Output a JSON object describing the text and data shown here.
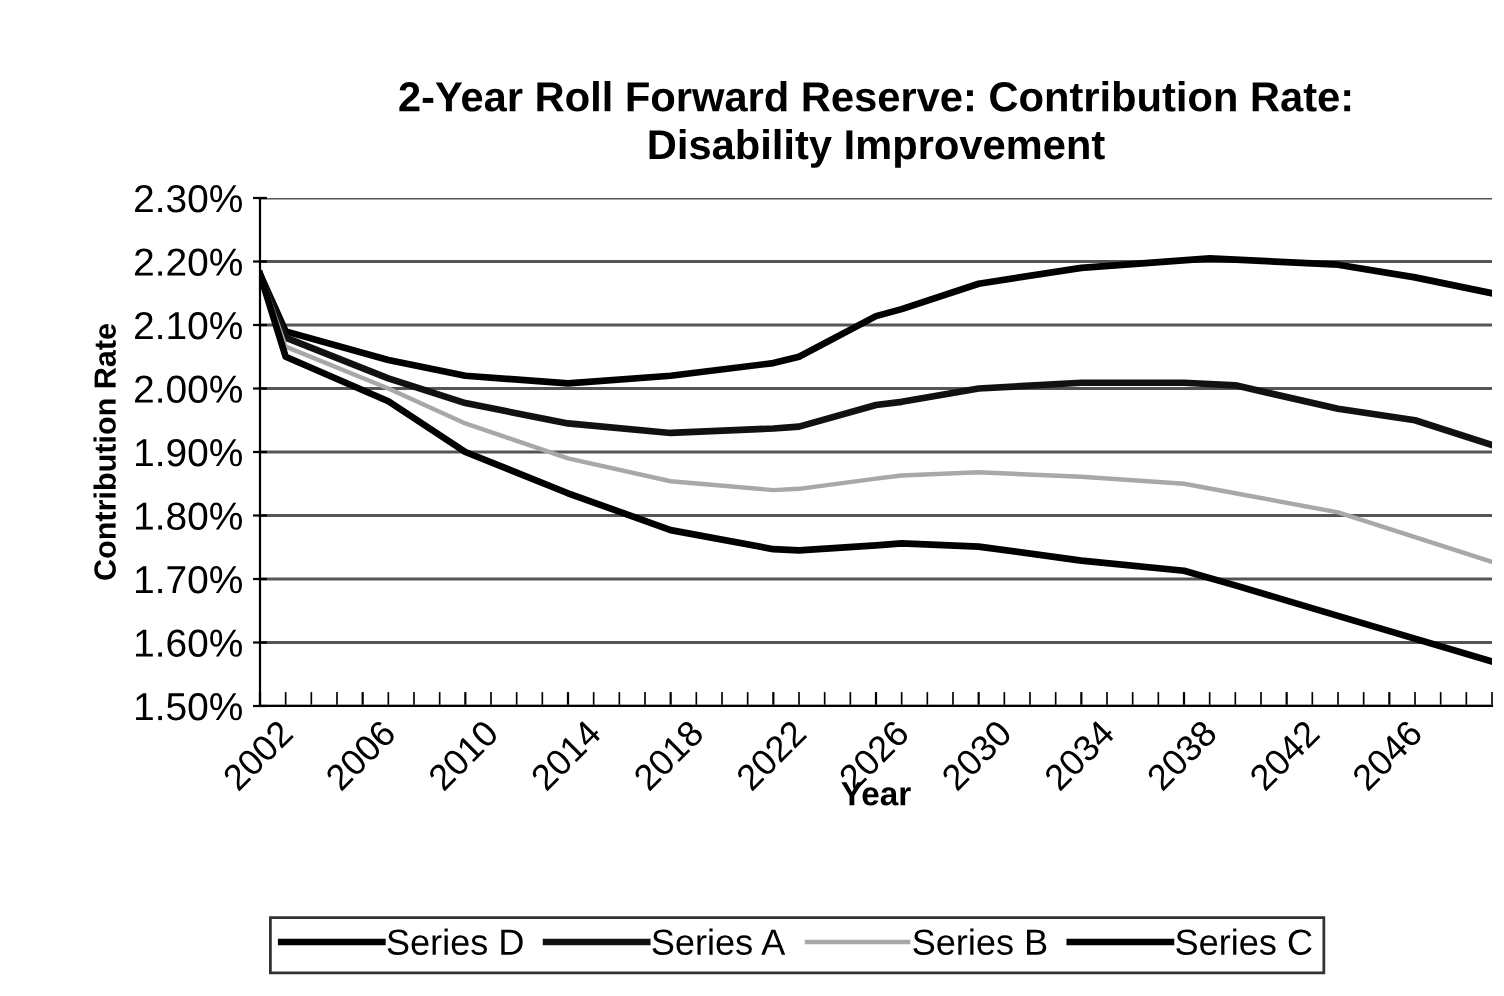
{
  "chart_data": {
    "type": "line",
    "title": "2-Year Roll Forward Reserve: Contribution Rate:\nDisability Improvement",
    "xlabel": "Year",
    "ylabel": "Contribution Rate",
    "series": [
      {
        "name": "Series D",
        "color": "#000000",
        "x": [
          2002,
          2003,
          2007,
          2010,
          2014,
          2018,
          2022,
          2023,
          2026,
          2027,
          2030,
          2034,
          2039,
          2044,
          2047,
          2050
        ],
        "values": [
          2.18,
          2.09,
          2.045,
          2.02,
          2.008,
          2.02,
          2.04,
          2.05,
          2.114,
          2.125,
          2.165,
          2.19,
          2.205,
          2.195,
          2.175,
          2.15
        ]
      },
      {
        "name": "Series A",
        "color": "#111111",
        "x": [
          2002,
          2003,
          2007,
          2010,
          2014,
          2018,
          2022,
          2023,
          2026,
          2027,
          2030,
          2034,
          2038,
          2040,
          2044,
          2047,
          2050
        ],
        "values": [
          2.18,
          2.08,
          2.016,
          1.977,
          1.945,
          1.93,
          1.937,
          1.94,
          1.974,
          1.979,
          2.0,
          2.009,
          2.009,
          2.005,
          1.968,
          1.95,
          1.911
        ]
      },
      {
        "name": "Series B",
        "color": "#a8a8a8",
        "x": [
          2002,
          2003,
          2007,
          2010,
          2014,
          2018,
          2022,
          2023,
          2026,
          2027,
          2030,
          2034,
          2038,
          2040,
          2044,
          2050
        ],
        "values": [
          2.18,
          2.066,
          2.0,
          1.945,
          1.89,
          1.854,
          1.84,
          1.842,
          1.858,
          1.863,
          1.868,
          1.861,
          1.85,
          1.835,
          1.805,
          1.727
        ]
      },
      {
        "name": "Series C",
        "color": "#000000",
        "x": [
          2002,
          2003,
          2007,
          2010,
          2014,
          2018,
          2022,
          2023,
          2026,
          2027,
          2030,
          2034,
          2038,
          2040,
          2044,
          2050
        ],
        "values": [
          2.18,
          2.05,
          1.98,
          1.9,
          1.835,
          1.777,
          1.747,
          1.745,
          1.753,
          1.756,
          1.751,
          1.729,
          1.713,
          1.69,
          1.642,
          1.57
        ]
      }
    ],
    "xlim": [
      2002,
      2050
    ],
    "xticks": [
      2002,
      2006,
      2010,
      2014,
      2018,
      2022,
      2026,
      2030,
      2034,
      2038,
      2042,
      2046
    ],
    "ylim": [
      1.5,
      2.3
    ],
    "yticks": [
      {
        "value": 1.5,
        "label": "1.50%"
      },
      {
        "value": 1.6,
        "label": "1.60%"
      },
      {
        "value": 1.7,
        "label": "1.70%"
      },
      {
        "value": 1.8,
        "label": "1.80%"
      },
      {
        "value": 1.9,
        "label": "1.90%"
      },
      {
        "value": 2.0,
        "label": "2.00%"
      },
      {
        "value": 2.1,
        "label": "2.10%"
      },
      {
        "value": 2.2,
        "label": "2.20%"
      },
      {
        "value": 2.3,
        "label": "2.30%"
      }
    ],
    "grid": "y",
    "legend": "bottom",
    "marker": "none",
    "line_style": "solid"
  }
}
